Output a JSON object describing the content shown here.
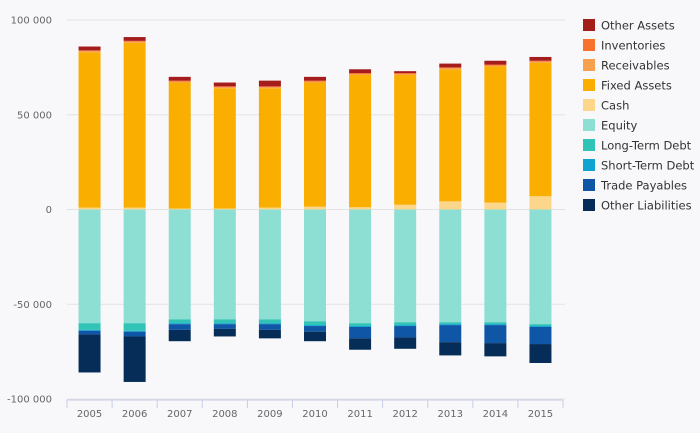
{
  "chart_data": {
    "type": "bar",
    "stacked": true,
    "categories": [
      "2005",
      "2006",
      "2007",
      "2008",
      "2009",
      "2010",
      "2011",
      "2012",
      "2013",
      "2014",
      "2015"
    ],
    "ylim": [
      -100000,
      100000
    ],
    "yticks": [
      100000,
      50000,
      0,
      -50000,
      -100000
    ],
    "ytick_labels": [
      "100 000",
      "50 000",
      "0",
      "-50 000",
      "-100 000"
    ],
    "grid": true,
    "legend_position": "right",
    "series": [
      {
        "name": "Other Assets",
        "color": "#a51c1c",
        "values": [
          2000,
          2000,
          2000,
          2000,
          3000,
          2000,
          2000,
          1000,
          2000,
          2000,
          2000
        ]
      },
      {
        "name": "Inventories",
        "color": "#f7722c",
        "values": [
          500,
          500,
          500,
          500,
          500,
          500,
          500,
          500,
          500,
          500,
          500
        ]
      },
      {
        "name": "Receivables",
        "color": "#f9a04e",
        "values": [
          500,
          500,
          500,
          500,
          500,
          500,
          500,
          500,
          500,
          500,
          500
        ]
      },
      {
        "name": "Fixed Assets",
        "color": "#f9ae00",
        "values": [
          82000,
          87000,
          66500,
          63500,
          63000,
          65500,
          69800,
          68500,
          69700,
          71800,
          70500
        ]
      },
      {
        "name": "Cash",
        "color": "#fcd68a",
        "values": [
          1000,
          1000,
          500,
          500,
          1000,
          1500,
          1200,
          2500,
          4300,
          3700,
          7000
        ]
      },
      {
        "name": "Equity",
        "color": "#8ddfd4",
        "values": [
          -60000,
          -60000,
          -58000,
          -58000,
          -58000,
          -59000,
          -60000,
          -59500,
          -59500,
          -59500,
          -60500
        ]
      },
      {
        "name": "Long-Term Debt",
        "color": "#31c3b6",
        "values": [
          -3500,
          -4000,
          -2000,
          -2000,
          -2000,
          -2000,
          -1500,
          -1500,
          -1000,
          -1000,
          -1000
        ]
      },
      {
        "name": "Short-Term Debt",
        "color": "#0ea4cf",
        "values": [
          -500,
          -500,
          -500,
          -500,
          -500,
          -500,
          -500,
          -500,
          -500,
          -500,
          -500
        ]
      },
      {
        "name": "Trade Payables",
        "color": "#0f57a6",
        "values": [
          -2000,
          -2500,
          -3000,
          -2500,
          -3000,
          -3000,
          -6000,
          -6000,
          -9000,
          -9500,
          -9000
        ]
      },
      {
        "name": "Other Liabilities",
        "color": "#062d57",
        "values": [
          -20000,
          -24000,
          -6000,
          -4000,
          -4500,
          -5000,
          -6000,
          -6000,
          -7000,
          -7000,
          -10000
        ]
      }
    ]
  }
}
